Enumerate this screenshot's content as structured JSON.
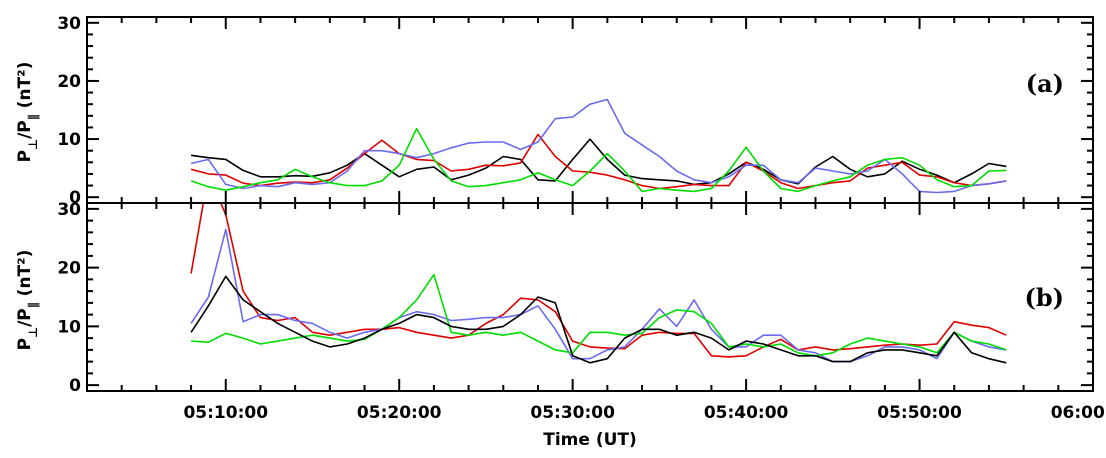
{
  "chart_data": {
    "type": "line",
    "xlabel": "Time (UT)",
    "x_tick_labels": [
      "05:10:00",
      "05:20:00",
      "05:30:00",
      "05:40:00",
      "05:50:00",
      "06:00:00"
    ],
    "xlim": [
      2,
      60
    ],
    "x_unit": "minutes after 05:00:00 UT",
    "x": [
      8,
      9,
      10,
      11,
      12,
      13,
      14,
      15,
      16,
      17,
      18,
      19,
      20,
      21,
      22,
      23,
      24,
      25,
      26,
      27,
      28,
      29,
      30,
      31,
      32,
      33,
      34,
      35,
      36,
      37,
      38,
      39,
      40,
      41,
      42,
      43,
      44,
      45,
      46,
      47,
      48,
      49,
      50,
      51,
      52,
      53,
      54,
      55
    ],
    "colors": {
      "black": "#000000",
      "red": "#e00000",
      "blue": "#6b6bf0",
      "green": "#00dd00"
    },
    "panels": [
      {
        "tag": "(a)",
        "ylabel_main": "P",
        "ylabel_sub1": "⊥",
        "ylabel_mid": "/P",
        "ylabel_sub2": "∥",
        "ylabel_unit": "(nT²)",
        "ylim": [
          -1,
          31
        ],
        "y_tick_labels": [
          "0",
          "10",
          "20",
          "30"
        ],
        "y_ticks": [
          0,
          10,
          20,
          30
        ],
        "series": [
          {
            "color": "black",
            "values": [
              7.2,
              6.8,
              6.5,
              4.6,
              3.5,
              3.5,
              3.7,
              3.6,
              4.2,
              5.5,
              7.5,
              5.5,
              3.5,
              4.8,
              5.2,
              3.0,
              3.8,
              5.0,
              7.0,
              6.5,
              3.0,
              2.8,
              6.5,
              10.0,
              6.5,
              3.8,
              3.2,
              3.0,
              2.8,
              2.2,
              2.5,
              4.0,
              6.0,
              4.8,
              3.0,
              2.3,
              5.2,
              7.0,
              4.8,
              3.5,
              4.0,
              6.2,
              4.8,
              3.8,
              2.5,
              4.0,
              5.8,
              5.3
            ]
          },
          {
            "color": "red",
            "values": [
              4.8,
              4.0,
              3.8,
              2.4,
              2.0,
              2.4,
              2.6,
              2.5,
              3.0,
              5.0,
              7.5,
              9.8,
              7.5,
              6.5,
              6.3,
              4.5,
              4.8,
              5.5,
              5.4,
              5.9,
              10.8,
              7.0,
              4.5,
              4.3,
              3.8,
              3.0,
              2.0,
              1.5,
              1.8,
              2.2,
              2.0,
              2.0,
              6.0,
              4.5,
              2.5,
              1.5,
              2.0,
              2.5,
              2.8,
              5.0,
              5.5,
              6.0,
              3.8,
              3.5,
              2.5,
              2.0,
              2.3,
              2.8
            ]
          },
          {
            "color": "blue",
            "values": [
              5.8,
              6.5,
              2.2,
              1.5,
              2.0,
              1.8,
              2.5,
              2.2,
              2.5,
              4.5,
              8.0,
              8.0,
              7.5,
              6.8,
              7.5,
              8.5,
              9.3,
              9.5,
              9.5,
              8.2,
              9.5,
              13.5,
              13.8,
              16.0,
              16.8,
              11.0,
              9.0,
              7.0,
              4.5,
              3.0,
              2.5,
              3.5,
              5.5,
              5.5,
              3.0,
              2.5,
              5.0,
              4.5,
              4.0,
              4.5,
              6.5,
              4.0,
              1.0,
              0.8,
              1.0,
              2.0,
              2.3,
              2.8
            ]
          },
          {
            "color": "green",
            "values": [
              2.8,
              1.8,
              1.2,
              1.8,
              2.5,
              3.0,
              4.8,
              3.5,
              2.5,
              2.0,
              2.0,
              2.8,
              5.5,
              11.8,
              6.5,
              2.8,
              1.8,
              2.0,
              2.5,
              3.0,
              4.2,
              3.0,
              2.0,
              4.5,
              7.5,
              4.5,
              1.0,
              1.5,
              1.2,
              1.0,
              1.5,
              4.5,
              8.6,
              4.5,
              1.5,
              1.0,
              2.0,
              2.8,
              3.5,
              5.5,
              6.5,
              6.8,
              5.5,
              3.0,
              1.8,
              2.0,
              4.5,
              4.6
            ]
          }
        ]
      },
      {
        "tag": "(b)",
        "ylabel_main": "P",
        "ylabel_sub1": "⊥",
        "ylabel_mid": "/P",
        "ylabel_sub2": "∥",
        "ylabel_unit": "(nT²)",
        "ylim": [
          -1,
          31
        ],
        "y_tick_labels": [
          "0",
          "10",
          "20",
          "30"
        ],
        "y_ticks": [
          0,
          10,
          20,
          30
        ],
        "series": [
          {
            "color": "red",
            "values": [
              19.0,
              36.0,
              29.0,
              16.0,
              11.5,
              11.0,
              11.5,
              9.0,
              8.5,
              9.0,
              9.5,
              9.5,
              9.8,
              9.0,
              8.5,
              8.0,
              8.5,
              10.5,
              12.0,
              14.8,
              14.5,
              12.5,
              7.5,
              6.5,
              6.3,
              6.2,
              8.5,
              9.0,
              8.8,
              8.8,
              5.0,
              4.8,
              5.0,
              6.5,
              7.8,
              6.0,
              6.5,
              6.0,
              6.2,
              6.5,
              6.8,
              7.0,
              6.8,
              7.0,
              10.8,
              10.2,
              9.8,
              8.5
            ]
          },
          {
            "color": "blue",
            "values": [
              10.5,
              15.0,
              26.5,
              10.8,
              12.0,
              12.0,
              11.0,
              10.5,
              9.0,
              8.0,
              9.0,
              9.5,
              11.5,
              12.5,
              12.0,
              11.0,
              11.2,
              11.5,
              11.5,
              12.0,
              13.5,
              9.5,
              4.5,
              4.5,
              6.0,
              6.5,
              9.5,
              13.0,
              10.0,
              14.5,
              9.5,
              6.5,
              6.5,
              8.5,
              8.5,
              6.0,
              5.5,
              4.0,
              4.0,
              5.0,
              6.5,
              6.5,
              6.0,
              4.5,
              9.0,
              7.5,
              6.5,
              6.0
            ]
          },
          {
            "color": "green",
            "values": [
              7.5,
              7.3,
              8.8,
              8.0,
              7.0,
              7.5,
              8.0,
              8.5,
              8.0,
              7.5,
              7.8,
              9.5,
              11.5,
              14.5,
              18.8,
              9.0,
              8.5,
              9.0,
              8.5,
              9.0,
              7.5,
              6.0,
              5.5,
              9.0,
              9.0,
              8.5,
              8.8,
              11.5,
              12.8,
              12.5,
              10.5,
              6.5,
              7.0,
              6.5,
              7.0,
              5.5,
              5.0,
              5.5,
              7.0,
              8.0,
              7.5,
              7.0,
              6.5,
              5.5,
              9.0,
              7.5,
              7.0,
              6.0
            ]
          },
          {
            "color": "black",
            "values": [
              9.0,
              13.5,
              18.5,
              14.5,
              12.5,
              10.5,
              9.0,
              7.5,
              6.5,
              7.0,
              8.0,
              9.5,
              10.5,
              12.0,
              11.5,
              10.0,
              9.5,
              9.5,
              10.0,
              12.0,
              15.0,
              14.0,
              5.0,
              3.8,
              4.5,
              8.0,
              9.5,
              9.5,
              8.5,
              9.0,
              8.0,
              6.0,
              7.5,
              7.0,
              6.0,
              5.0,
              5.0,
              4.0,
              4.0,
              5.5,
              6.0,
              6.0,
              5.5,
              5.0,
              9.0,
              5.5,
              4.5,
              3.8
            ]
          }
        ]
      }
    ]
  }
}
